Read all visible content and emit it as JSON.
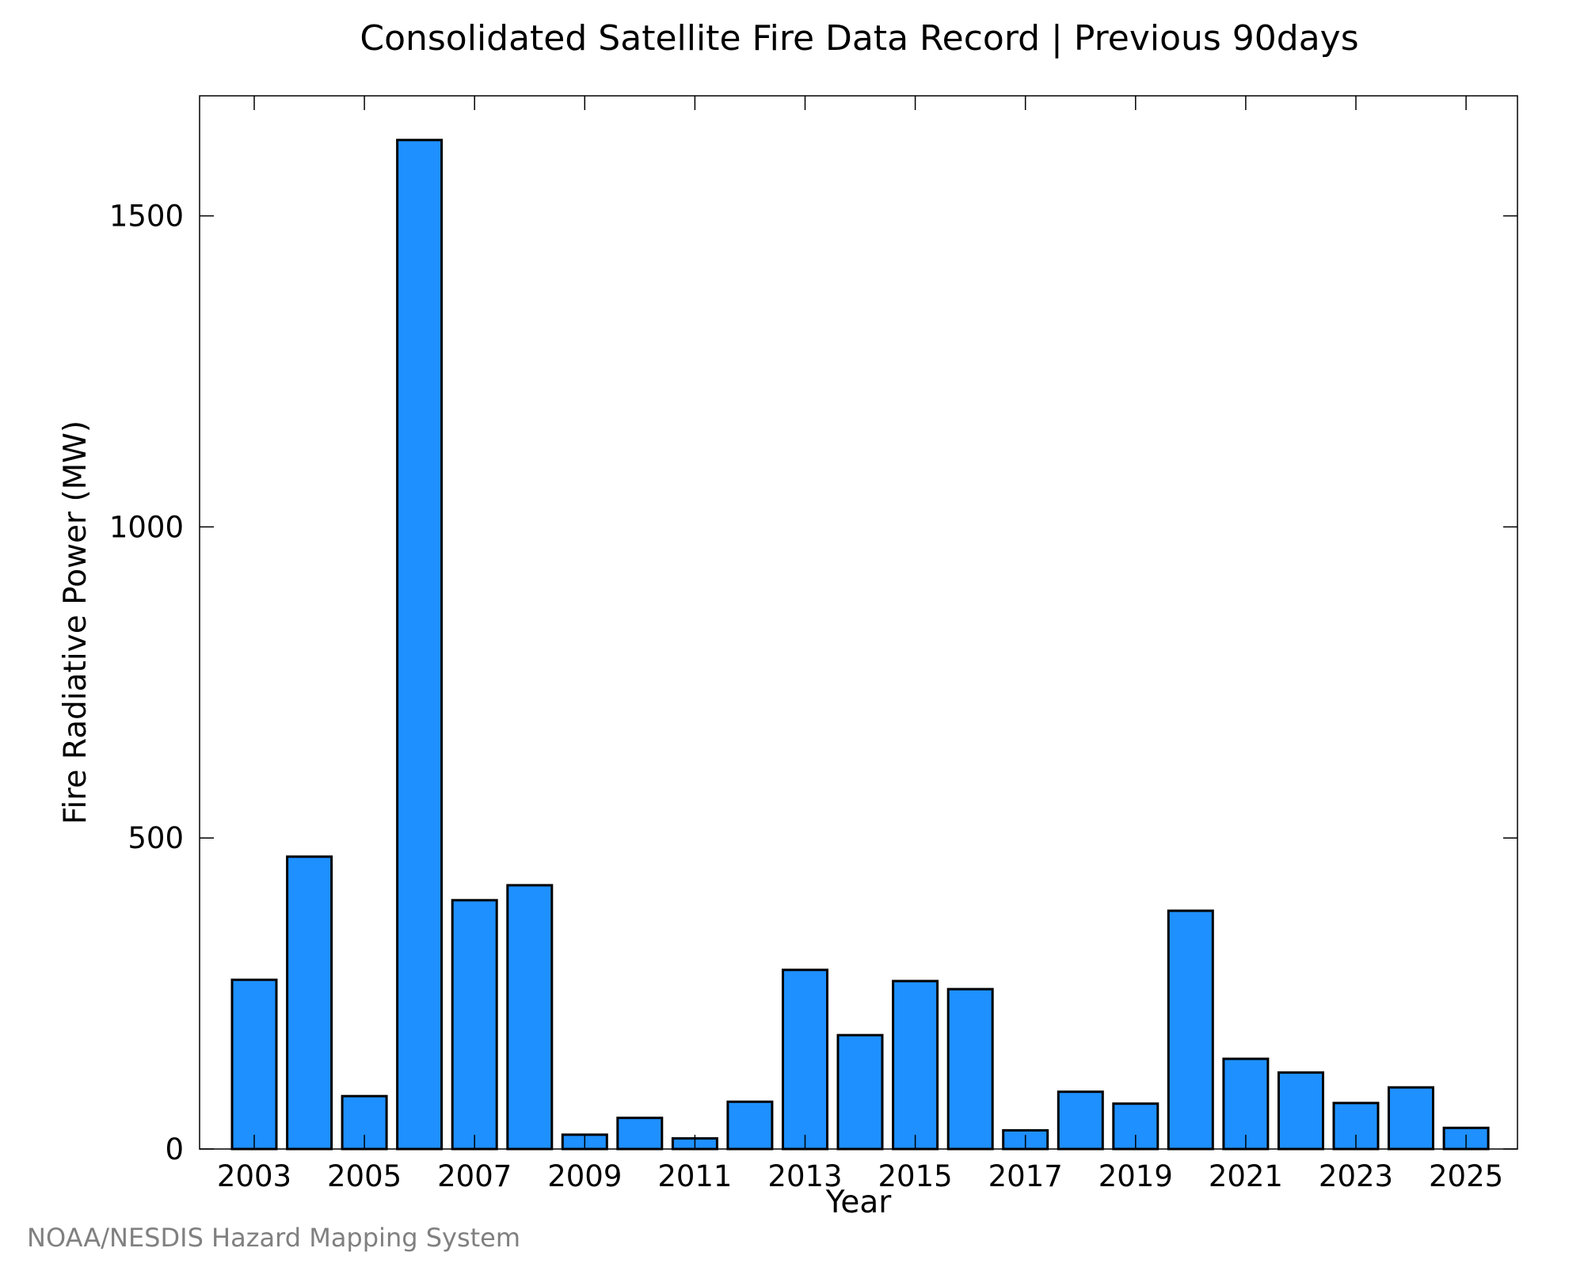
{
  "chart_data": {
    "type": "bar",
    "title": "Consolidated Satellite Fire Data Record | Previous 90days",
    "xlabel": "Year",
    "ylabel": "Fire Radiative Power (MW)",
    "categories": [
      "2003",
      "2004",
      "2005",
      "2006",
      "2007",
      "2008",
      "2009",
      "2010",
      "2011",
      "2012",
      "2013",
      "2014",
      "2015",
      "2016",
      "2017",
      "2018",
      "2019",
      "2020",
      "2021",
      "2022",
      "2023",
      "2024",
      "2025"
    ],
    "values": [
      272,
      470,
      85,
      1622,
      400,
      424,
      23,
      50,
      17,
      76,
      288,
      183,
      270,
      257,
      30,
      92,
      73,
      383,
      145,
      123,
      74,
      99,
      34
    ],
    "x_tick_labels": [
      "2003",
      "2005",
      "2007",
      "2009",
      "2011",
      "2013",
      "2015",
      "2017",
      "2019",
      "2021",
      "2023",
      "2025"
    ],
    "y_ticks": [
      0,
      500,
      1000,
      1500
    ],
    "ylim": [
      0,
      1693
    ],
    "bar_color": "#1e90ff",
    "bar_edge_color": "#000000",
    "grid": false,
    "legend": false,
    "credit": "NOAA/NESDIS Hazard Mapping System"
  }
}
